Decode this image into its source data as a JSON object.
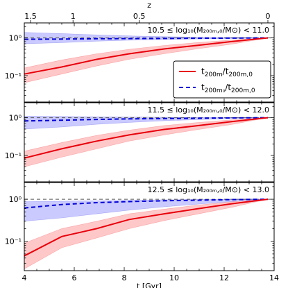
{
  "chart_data": {
    "type": "line",
    "xlabel": "t [Gyr]",
    "xlim": [
      4,
      14
    ],
    "x_ticks": [
      "4",
      "6",
      "8",
      "10",
      "12",
      "14"
    ],
    "top_axis": {
      "label": "z",
      "ticks": [
        {
          "label": "1.5",
          "t": 4.25
        },
        {
          "label": "1",
          "t": 5.95
        },
        {
          "label": "0.5",
          "t": 8.6
        },
        {
          "label": "0",
          "t": 13.75
        }
      ]
    },
    "y_scale": "log",
    "ylim": [
      0.02,
      2.5
    ],
    "y_tick_labels": [
      "10⁰",
      "10⁻¹"
    ],
    "reference_line_y": 1.0,
    "legend": {
      "placement": "right, top panel",
      "entries": [
        {
          "label_main": "t",
          "label_sub": "200m",
          "label_sep": "/t",
          "label_sub2": "200m,0",
          "color": "#e8000b",
          "style": "solid"
        },
        {
          "label_main": "t",
          "label_sub": "200m₀",
          "label_sep": "/t",
          "label_sub2": "200m,0",
          "color": "#0000d8",
          "style": "dashed"
        }
      ]
    },
    "panels": [
      {
        "title": "10.5 ≤ log₁₀(M₂₀₀ₘ,₀/M⊙) < 11.0",
        "red": {
          "x": [
            4.0,
            5.5,
            6.9,
            8.2,
            9.6,
            10.9,
            12.3,
            13.75
          ],
          "y": [
            0.11,
            0.17,
            0.27,
            0.38,
            0.51,
            0.63,
            0.8,
            1.0
          ],
          "lo": [
            0.065,
            0.11,
            0.18,
            0.27,
            0.38,
            0.51,
            0.68,
            1.0
          ],
          "hi": [
            0.16,
            0.26,
            0.38,
            0.5,
            0.63,
            0.75,
            0.88,
            1.0
          ]
        },
        "blue": {
          "x": [
            4.0,
            5.5,
            6.9,
            8.2,
            9.6,
            10.9,
            12.3,
            13.75
          ],
          "y": [
            0.92,
            0.93,
            0.95,
            0.96,
            0.97,
            0.98,
            0.99,
            1.0
          ],
          "lo": [
            0.7,
            0.75,
            0.82,
            0.87,
            0.91,
            0.94,
            0.97,
            1.0
          ],
          "hi": [
            1.4,
            1.3,
            1.2,
            1.13,
            1.08,
            1.05,
            1.02,
            1.0
          ]
        }
      },
      {
        "title": "11.5 ≤ log₁₀(M₂₀₀ₘ,₀/M⊙) < 12.0",
        "red": {
          "x": [
            4.0,
            5.5,
            6.9,
            8.2,
            9.6,
            10.9,
            12.3,
            13.75
          ],
          "y": [
            0.085,
            0.15,
            0.24,
            0.35,
            0.49,
            0.61,
            0.79,
            1.0
          ],
          "lo": [
            0.05,
            0.09,
            0.15,
            0.24,
            0.35,
            0.48,
            0.66,
            1.0
          ],
          "hi": [
            0.13,
            0.22,
            0.34,
            0.47,
            0.62,
            0.74,
            0.88,
            1.0
          ]
        },
        "blue": {
          "x": [
            4.0,
            5.5,
            6.9,
            8.2,
            9.6,
            10.9,
            12.3,
            13.75
          ],
          "y": [
            0.82,
            0.86,
            0.9,
            0.93,
            0.95,
            0.97,
            0.99,
            1.0
          ],
          "lo": [
            0.5,
            0.57,
            0.67,
            0.75,
            0.83,
            0.89,
            0.95,
            1.0
          ],
          "hi": [
            1.1,
            1.08,
            1.06,
            1.05,
            1.03,
            1.02,
            1.01,
            1.0
          ]
        }
      },
      {
        "title": "12.5 ≤ log₁₀(M₂₀₀ₘ,₀/M⊙) < 13.0",
        "red": {
          "x": [
            4.0,
            5.5,
            6.9,
            8.2,
            9.6,
            10.9,
            12.3,
            13.75
          ],
          "y": [
            0.045,
            0.13,
            0.2,
            0.33,
            0.45,
            0.59,
            0.78,
            1.0
          ],
          "lo": [
            0.022,
            0.07,
            0.12,
            0.2,
            0.31,
            0.44,
            0.64,
            1.0
          ],
          "hi": [
            0.09,
            0.2,
            0.3,
            0.45,
            0.58,
            0.72,
            0.87,
            1.0
          ]
        },
        "blue": {
          "x": [
            4.0,
            5.5,
            6.9,
            8.2,
            9.6,
            10.9,
            12.3,
            13.75
          ],
          "y": [
            0.62,
            0.75,
            0.83,
            0.88,
            0.92,
            0.95,
            0.98,
            1.0
          ],
          "lo": [
            0.3,
            0.36,
            0.45,
            0.55,
            0.66,
            0.76,
            0.88,
            1.0
          ],
          "hi": [
            0.88,
            0.9,
            0.92,
            0.95,
            0.97,
            0.98,
            0.99,
            1.0
          ]
        }
      }
    ],
    "colors": {
      "red_line": "#e8000b",
      "red_band": "#ffb6b6",
      "blue_line": "#0000d8",
      "blue_band": "#b8b8ff",
      "reference": "#555555"
    }
  }
}
